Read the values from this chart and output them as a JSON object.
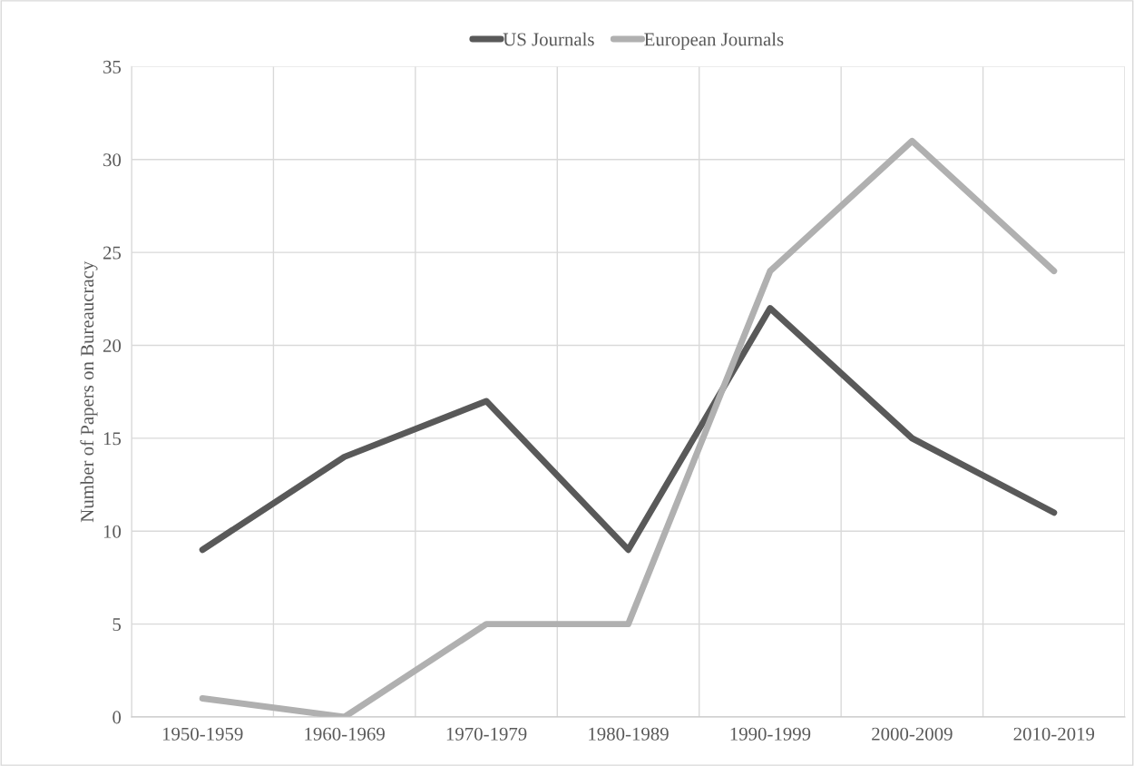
{
  "chart_data": {
    "type": "line",
    "ylabel": "Number of Papers on Bureaucracy",
    "categories": [
      "1950-1959",
      "1960-1969",
      "1970-1979",
      "1980-1989",
      "1990-1999",
      "2000-2009",
      "2010-2019"
    ],
    "series": [
      {
        "name": "US Journals",
        "color": "#595959",
        "values": [
          9,
          14,
          17,
          9,
          22,
          15,
          11
        ]
      },
      {
        "name": "European Journals",
        "color": "#b0b0b0",
        "values": [
          1,
          0,
          5,
          5,
          24,
          31,
          24
        ]
      }
    ],
    "ylim": [
      0,
      35
    ],
    "yticks": [
      0,
      5,
      10,
      15,
      20,
      25,
      30,
      35
    ],
    "grid": true,
    "legend": "top",
    "marker": "none",
    "line_style": "solid"
  }
}
